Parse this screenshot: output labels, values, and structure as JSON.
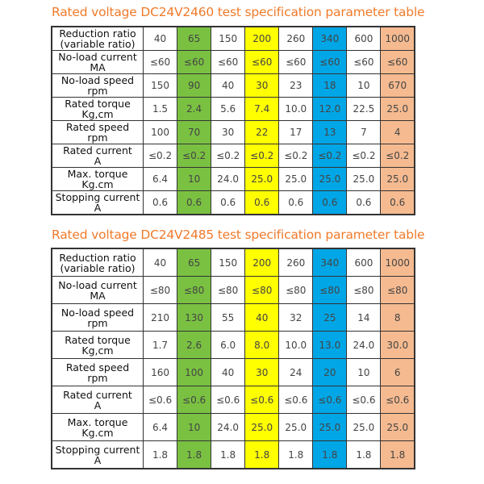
{
  "colors": {
    "title": "#f07a2a",
    "col_65": "#7ac142",
    "col_200": "#ffff00",
    "col_340": "#00a6e6",
    "col_1000": "#f5ba90"
  },
  "tables": [
    {
      "title": "Rated voltage DC24V2460 test specification parameter table",
      "rows": [
        {
          "label": [
            "Reduction ratio",
            "(variable ratio)"
          ],
          "values": [
            "40",
            "65",
            "150",
            "200",
            "260",
            "340",
            "600",
            "1000"
          ]
        },
        {
          "label": [
            "No-load current",
            "MA"
          ],
          "values": [
            "≤60",
            "≤60",
            "≤60",
            "≤60",
            "≤60",
            "≤60",
            "≤60",
            "≤60"
          ]
        },
        {
          "label": [
            "No-load speed",
            "rpm"
          ],
          "values": [
            "150",
            "90",
            "40",
            "30",
            "23",
            "18",
            "10",
            "670"
          ]
        },
        {
          "label": [
            "Rated torque",
            "Kg,cm"
          ],
          "values": [
            "1.5",
            "2.4",
            "5.6",
            "7.4",
            "10.0",
            "12.0",
            "22.5",
            "25.0"
          ]
        },
        {
          "label": [
            "Rated speed",
            "rpm"
          ],
          "values": [
            "100",
            "70",
            "30",
            "22",
            "17",
            "13",
            "7",
            "4"
          ]
        },
        {
          "label": [
            "Rated current",
            "A"
          ],
          "values": [
            "≤0.2",
            "≤0.2",
            "≤0.2",
            "≤0.2",
            "≤0.2",
            "≤0.2",
            "≤0.2",
            "≤0.2"
          ]
        },
        {
          "label": [
            "Max. torque",
            "Kg.cm"
          ],
          "values": [
            "6.4",
            "10",
            "24.0",
            "25.0",
            "25.0",
            "25.0",
            "25.0",
            "25.0"
          ]
        },
        {
          "label": [
            "Stopping current",
            "A"
          ],
          "values": [
            "0.6",
            "0.6",
            "0.6",
            "0.6",
            "0.6",
            "0.6",
            "0.6",
            "0.6"
          ]
        }
      ]
    },
    {
      "title": "Rated voltage DC24V2485 test specification parameter table",
      "rows": [
        {
          "label": [
            "Reduction ratio",
            "(variable ratio)"
          ],
          "values": [
            "40",
            "65",
            "150",
            "200",
            "260",
            "340",
            "600",
            "1000"
          ]
        },
        {
          "label": [
            "No-load current",
            "MA"
          ],
          "values": [
            "≤80",
            "≤80",
            "≤80",
            "≤80",
            "≤80",
            "≤80",
            "≤80",
            "≤80"
          ]
        },
        {
          "label": [
            "No-load speed",
            "rpm"
          ],
          "values": [
            "210",
            "130",
            "55",
            "40",
            "32",
            "25",
            "14",
            "8"
          ]
        },
        {
          "label": [
            "Rated torque",
            "Kg,cm"
          ],
          "values": [
            "1.7",
            "2.6",
            "6.0",
            "8.0",
            "10.0",
            "13.0",
            "24.0",
            "30.0"
          ]
        },
        {
          "label": [
            "Rated speed",
            "rpm"
          ],
          "values": [
            "160",
            "100",
            "40",
            "30",
            "24",
            "20",
            "10",
            "6"
          ]
        },
        {
          "label": [
            "Rated current",
            "A"
          ],
          "values": [
            "≤0.6",
            "≤0.6",
            "≤0.6",
            "≤0.6",
            "≤0.6",
            "≤0.6",
            "≤0.6",
            "≤0.6"
          ]
        },
        {
          "label": [
            "Max. torque",
            "Kg.cm"
          ],
          "values": [
            "6.4",
            "10",
            "24.0",
            "25.0",
            "25.0",
            "25.0",
            "25.0",
            "25.0"
          ]
        },
        {
          "label": [
            "Stopping current",
            "A"
          ],
          "values": [
            "1.8",
            "1.8",
            "1.8",
            "1.8",
            "1.8",
            "1.8",
            "1.8",
            "1.8"
          ]
        }
      ]
    }
  ]
}
